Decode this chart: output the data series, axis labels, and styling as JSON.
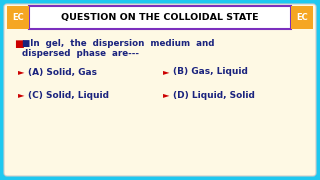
{
  "title": "QUESTION ON THE COLLOIDAL STATE",
  "q_line1": "■In  gel,  the  dispersion  medium  and",
  "q_line2": "dispersed  phase  are---",
  "opt_A": "(A) Solid, Gas",
  "opt_B": "(B) Gas, Liquid",
  "opt_C": "(C) Solid, Liquid",
  "opt_D": "(D) Liquid, Solid",
  "bg_color": "#1EC8F0",
  "card_color": "#FEF9E4",
  "title_bg": "#FFFFFF",
  "title_border": "#7B2FBE",
  "title_color": "#000000",
  "question_color": "#1A237E",
  "option_color": "#1A237E",
  "ec_bg": "#F5A623",
  "ec_text": "#FFFFFF",
  "checkbox_color": "#CC0000",
  "arrow_color": "#CC0000"
}
